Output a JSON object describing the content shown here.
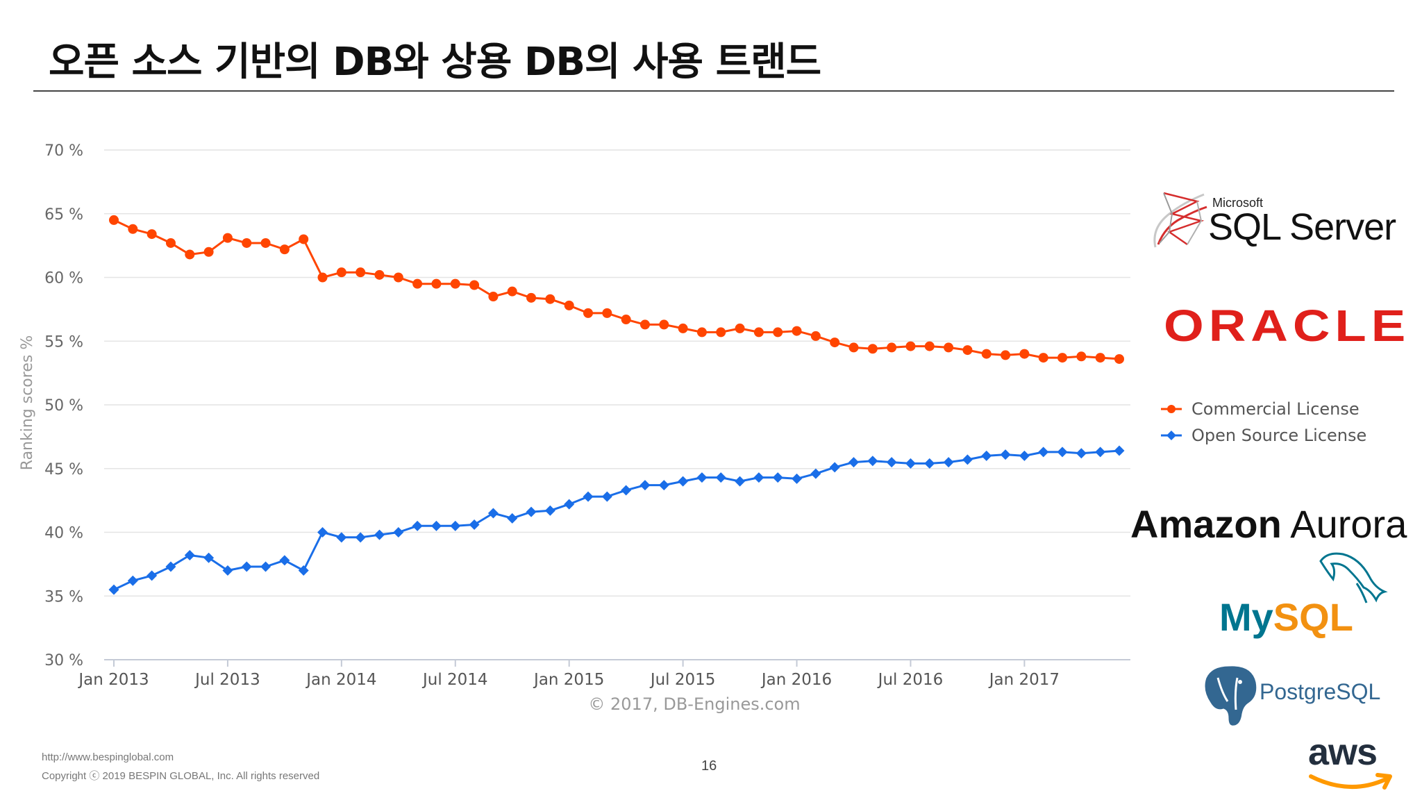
{
  "slide": {
    "title": "오픈 소스 기반의 DB와 상용 DB의 사용 트랜드",
    "footer_url": "http://www.bespinglobal.com",
    "footer_copyright": "Copyright ⓒ 2019 BESPIN GLOBAL, Inc. All rights reserved",
    "page_number": "16"
  },
  "logos": {
    "sql_server": {
      "small": "Microsoft",
      "main": "SQL Server"
    },
    "oracle": "ORACLE",
    "amazon_aurora": {
      "bold": "Amazon",
      "regular": "Aurora"
    },
    "mysql": {
      "my": "My",
      "sql": "SQL"
    },
    "postgresql": "PostgreSQL",
    "aws": "aws"
  },
  "colors": {
    "commercial": "#ff4500",
    "open_source": "#1a6ee8",
    "oracle": "#e0201b",
    "mysql_blue": "#00758f",
    "mysql_orange": "#f29111",
    "postgres_blue": "#336791",
    "aws_orange": "#ff9900"
  },
  "chart_data": {
    "type": "line",
    "ylabel": "Ranking scores %",
    "ylim": [
      30,
      70
    ],
    "yticks": [
      30,
      35,
      40,
      45,
      50,
      55,
      60,
      65,
      70
    ],
    "ytick_labels": [
      "30 %",
      "35 %",
      "40 %",
      "45 %",
      "50 %",
      "55 %",
      "60 %",
      "65 %",
      "70 %"
    ],
    "xlim": [
      "2013-01",
      "2017-06"
    ],
    "xticks": [
      {
        "date": "2013-01",
        "label": "Jan 2013"
      },
      {
        "date": "2013-07",
        "label": "Jul 2013"
      },
      {
        "date": "2014-01",
        "label": "Jan 2014"
      },
      {
        "date": "2014-07",
        "label": "Jul 2014"
      },
      {
        "date": "2015-01",
        "label": "Jan 2015"
      },
      {
        "date": "2015-07",
        "label": "Jul 2015"
      },
      {
        "date": "2016-01",
        "label": "Jan 2016"
      },
      {
        "date": "2016-07",
        "label": "Jul 2016"
      },
      {
        "date": "2017-01",
        "label": "Jan 2017"
      }
    ],
    "x": [
      "2013-01",
      "2013-02",
      "2013-03",
      "2013-04",
      "2013-05",
      "2013-06",
      "2013-07",
      "2013-08",
      "2013-09",
      "2013-10",
      "2013-11",
      "2013-12",
      "2014-01",
      "2014-02",
      "2014-03",
      "2014-04",
      "2014-05",
      "2014-06",
      "2014-07",
      "2014-08",
      "2014-09",
      "2014-10",
      "2014-11",
      "2014-12",
      "2015-01",
      "2015-02",
      "2015-03",
      "2015-04",
      "2015-05",
      "2015-06",
      "2015-07",
      "2015-08",
      "2015-09",
      "2015-10",
      "2015-11",
      "2015-12",
      "2016-01",
      "2016-02",
      "2016-03",
      "2016-04",
      "2016-05",
      "2016-06",
      "2016-07",
      "2016-08",
      "2016-09",
      "2016-10",
      "2016-11",
      "2016-12",
      "2017-01",
      "2017-02",
      "2017-03",
      "2017-04",
      "2017-05",
      "2017-06"
    ],
    "series": [
      {
        "name": "Commercial License",
        "color": "#ff4500",
        "marker": "circle",
        "values": [
          64.5,
          63.8,
          63.4,
          62.7,
          61.8,
          62.0,
          63.1,
          62.7,
          62.7,
          62.2,
          63.0,
          60.0,
          60.4,
          60.4,
          60.2,
          60.0,
          59.5,
          59.5,
          59.5,
          59.4,
          58.5,
          58.9,
          58.4,
          58.3,
          57.8,
          57.2,
          57.2,
          56.7,
          56.3,
          56.3,
          56.0,
          55.7,
          55.7,
          56.0,
          55.7,
          55.7,
          55.8,
          55.4,
          54.9,
          54.5,
          54.4,
          54.5,
          54.6,
          54.6,
          54.5,
          54.3,
          54.0,
          53.9,
          54.0,
          53.7,
          53.7,
          53.8,
          53.7,
          53.6
        ]
      },
      {
        "name": "Open Source License",
        "color": "#1a6ee8",
        "marker": "diamond",
        "values": [
          35.5,
          36.2,
          36.6,
          37.3,
          38.2,
          38.0,
          37.0,
          37.3,
          37.3,
          37.8,
          37.0,
          40.0,
          39.6,
          39.6,
          39.8,
          40.0,
          40.5,
          40.5,
          40.5,
          40.6,
          41.5,
          41.1,
          41.6,
          41.7,
          42.2,
          42.8,
          42.8,
          43.3,
          43.7,
          43.7,
          44.0,
          44.3,
          44.3,
          44.0,
          44.3,
          44.3,
          44.2,
          44.6,
          45.1,
          45.5,
          45.6,
          45.5,
          45.4,
          45.4,
          45.5,
          45.7,
          46.0,
          46.1,
          46.0,
          46.3,
          46.3,
          46.2,
          46.3,
          46.4
        ]
      }
    ],
    "grid": true,
    "legend_position": "right",
    "credit": "© 2017, DB-Engines.com"
  }
}
